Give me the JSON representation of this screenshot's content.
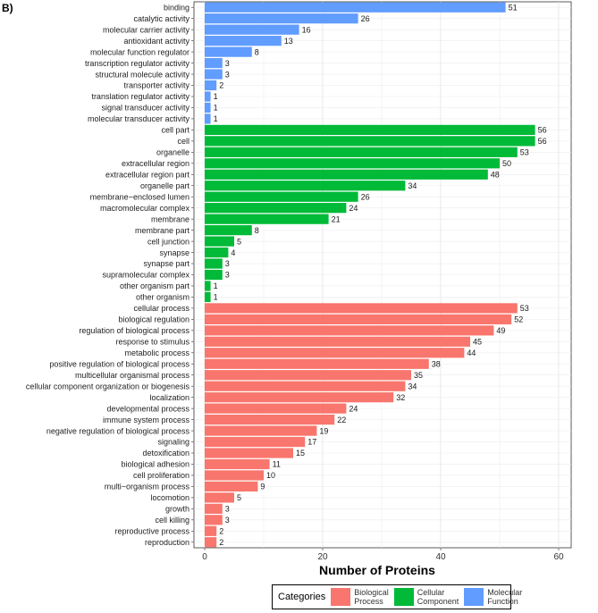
{
  "chart_data": {
    "type": "bar",
    "orientation": "horizontal",
    "panel_label": "B)",
    "xlabel": "Number of Proteins",
    "ylabel": "",
    "xlim": [
      0,
      65
    ],
    "x_ticks": [
      0,
      20,
      40,
      60
    ],
    "grid": true,
    "legend_position": "bottom",
    "legend": {
      "title": "Categories",
      "entries": [
        {
          "label_lines": [
            "Biological",
            "Process"
          ],
          "color": "#F8766D"
        },
        {
          "label_lines": [
            "Cellular",
            "Component"
          ],
          "color": "#00BA38"
        },
        {
          "label_lines": [
            "Molecular",
            "Function"
          ],
          "color": "#619CFF"
        }
      ]
    },
    "series": [
      {
        "name": "Molecular Function",
        "color": "#619CFF",
        "categories": [
          "binding",
          "catalytic activity",
          "molecular carrier activity",
          "antioxidant activity",
          "molecular function regulator",
          "transcription regulator activity",
          "structural molecule activity",
          "transporter activity",
          "translation regulator activity",
          "signal transducer activity",
          "molecular transducer activity"
        ],
        "values": [
          51,
          26,
          16,
          13,
          8,
          3,
          3,
          2,
          1,
          1,
          1
        ]
      },
      {
        "name": "Cellular Component",
        "color": "#00BA38",
        "categories": [
          "cell part",
          "cell",
          "organelle",
          "extracellular region",
          "extracellular region part",
          "organelle part",
          "membrane−enclosed lumen",
          "macromolecular complex",
          "membrane",
          "membrane part",
          "cell junction",
          "synapse",
          "synapse part",
          "supramolecular complex",
          "other organism part",
          "other organism"
        ],
        "values": [
          56,
          56,
          53,
          50,
          48,
          34,
          26,
          24,
          21,
          8,
          5,
          4,
          3,
          3,
          1,
          1
        ]
      },
      {
        "name": "Biological Process",
        "color": "#F8766D",
        "categories": [
          "cellular process",
          "biological regulation",
          "regulation of biological process",
          "response to stimulus",
          "metabolic process",
          "positive regulation of biological process",
          "multicellular organismal process",
          "cellular component organization or biogenesis",
          "localization",
          "developmental process",
          "immune system process",
          "negative regulation of biological process",
          "signaling",
          "detoxification",
          "biological adhesion",
          "cell proliferation",
          "multi−organism process",
          "locomotion",
          "growth",
          "cell killing",
          "reproductive process",
          "reproduction"
        ],
        "values": [
          53,
          52,
          49,
          45,
          44,
          38,
          35,
          34,
          32,
          24,
          22,
          19,
          17,
          15,
          11,
          10,
          9,
          5,
          3,
          3,
          2,
          2
        ]
      }
    ]
  }
}
